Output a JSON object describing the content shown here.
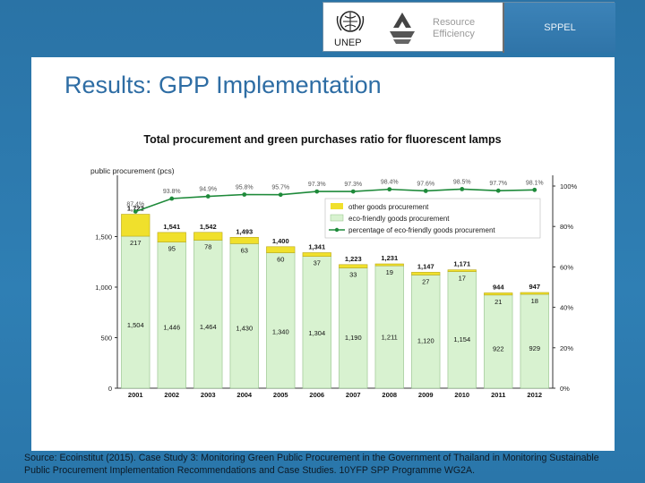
{
  "header": {
    "org_label": "UNEP",
    "resource_line1": "Resource",
    "resource_line2": "Efficiency",
    "sppel": "SPPEL"
  },
  "slide_title": "Results: GPP Implementation",
  "chart_title": "Total procurement and green purchases ratio for fluorescent lamps",
  "colors": {
    "eco": "#d8f2d0",
    "other": "#f0e02c",
    "line": "#1e8a3a",
    "title": "#2e6da4"
  },
  "chart_data": {
    "type": "bar",
    "title": "Total procurement and green purchases ratio for fluorescent lamps",
    "ylabel": "public procurement (pcs)",
    "categories": [
      "2001",
      "2002",
      "2003",
      "2004",
      "2005",
      "2006",
      "2007",
      "2008",
      "2009",
      "2010",
      "2011",
      "2012"
    ],
    "series": [
      {
        "name": "eco-friendly goods procurement",
        "values": [
          1504,
          1446,
          1464,
          1430,
          1340,
          1304,
          1190,
          1211,
          1120,
          1154,
          922,
          929
        ],
        "labels": [
          "1,504",
          "1,446",
          "1,464",
          "1,430",
          "1,340",
          "1,304",
          "1,190",
          "1,211",
          "1,120",
          "1,154",
          "922",
          "929"
        ]
      },
      {
        "name": "other goods procurement",
        "values": [
          217,
          95,
          78,
          63,
          60,
          37,
          33,
          19,
          27,
          17,
          21,
          18
        ],
        "labels": [
          "217",
          "95",
          "78",
          "63",
          "60",
          "37",
          "33",
          "19",
          "27",
          "17",
          "21",
          "18"
        ]
      }
    ],
    "totals": [
      "1,722",
      "1,541",
      "1,542",
      "1,493",
      "1,400",
      "1,341",
      "1,223",
      "1,231",
      "1,147",
      "1,171",
      "944",
      "947"
    ],
    "percentage": {
      "name": "percentage of eco-friendly goods procurement",
      "values": [
        87.4,
        93.8,
        94.9,
        95.8,
        95.7,
        97.3,
        97.3,
        98.4,
        97.6,
        98.5,
        97.7,
        98.1
      ],
      "labels": [
        "87.4%",
        "93.8%",
        "94.9%",
        "95.8%",
        "95.7%",
        "97.3%",
        "97.3%",
        "98.4%",
        "97.6%",
        "98.5%",
        "97.7%",
        "98.1%"
      ]
    },
    "yticks_left": [
      "0",
      "500",
      "1,000",
      "1,500"
    ],
    "yticks_right": [
      "0%",
      "20%",
      "40%",
      "60%",
      "80%",
      "100%"
    ],
    "ylim": [
      0,
      2000
    ],
    "ylim_right": [
      0,
      100
    ],
    "legend": [
      "other goods procurement",
      "eco-friendly goods procurement",
      "percentage of eco-friendly goods procurement"
    ],
    "legend_position": "top-right"
  },
  "source": "Source: Ecoinstitut (2015). Case Study 3: Monitoring Green Public Procurement in the Government of Thailand in Monitoring Sustainable Public Procurement Implementation Recommendations and Case Studies. 10YFP SPP Programme WG2A."
}
